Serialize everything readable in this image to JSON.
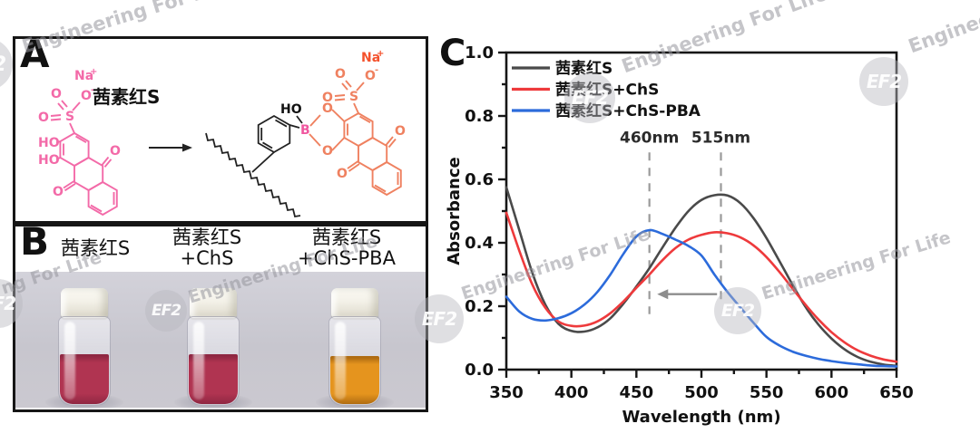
{
  "watermark": {
    "logo": "EF2",
    "text": "Engineering For Life",
    "text_short": "Engineer",
    "text_fragment": "ng For Life"
  },
  "panel_a": {
    "label": "A",
    "molecule_name": "茜素红S",
    "atoms": {
      "na": "Na",
      "plus": "+",
      "minus": "-",
      "s": "S",
      "o": "O",
      "ho": "HO",
      "b": "B"
    },
    "colors": {
      "alizarin_pink": "#f36aa8",
      "alizarin_orange": "#ef8160",
      "boron_pink": "#f0579f",
      "sodium_orange": "#f4512c"
    }
  },
  "panel_b": {
    "label": "B",
    "samples": [
      {
        "lines": [
          "茜素红S"
        ],
        "liquid": "#b03451",
        "liquid_dark": "#8f2742"
      },
      {
        "lines": [
          "茜素红S",
          "+ChS"
        ],
        "liquid": "#b03451",
        "liquid_dark": "#8f2742"
      },
      {
        "lines": [
          "茜素红S",
          "+ChS-PBA"
        ],
        "liquid": "#e5941e",
        "liquid_dark": "#b06c12"
      }
    ]
  },
  "panel_c": {
    "label": "C"
  },
  "chart_data": {
    "type": "line",
    "title": "",
    "xlabel": "Wavelength (nm)",
    "ylabel": "Absorbance",
    "xlim": [
      350,
      650
    ],
    "ylim": [
      0.0,
      1.0
    ],
    "x_ticks": [
      350,
      400,
      450,
      500,
      550,
      600,
      650
    ],
    "y_ticks": [
      0.0,
      0.2,
      0.4,
      0.6,
      0.8,
      1.0
    ],
    "grid": false,
    "legend_position": "top-left",
    "x_start": 350,
    "x_step": 10,
    "series": [
      {
        "name": "茜素红S",
        "color": "#4a4a4a",
        "values": [
          0.575,
          0.44,
          0.305,
          0.205,
          0.145,
          0.122,
          0.12,
          0.133,
          0.162,
          0.208,
          0.262,
          0.32,
          0.385,
          0.447,
          0.5,
          0.535,
          0.55,
          0.549,
          0.525,
          0.478,
          0.415,
          0.342,
          0.268,
          0.198,
          0.142,
          0.098,
          0.064,
          0.04,
          0.025,
          0.016,
          0.012
        ]
      },
      {
        "name": "茜素红S+ChS",
        "color": "#ee3a3c",
        "values": [
          0.495,
          0.375,
          0.268,
          0.195,
          0.152,
          0.138,
          0.139,
          0.152,
          0.178,
          0.215,
          0.258,
          0.3,
          0.345,
          0.383,
          0.41,
          0.425,
          0.433,
          0.43,
          0.417,
          0.392,
          0.355,
          0.308,
          0.256,
          0.205,
          0.158,
          0.118,
          0.086,
          0.061,
          0.044,
          0.032,
          0.025
        ]
      },
      {
        "name": "茜素红S+ChS-PBA",
        "color": "#2c6bdb",
        "values": [
          0.23,
          0.183,
          0.16,
          0.155,
          0.162,
          0.178,
          0.205,
          0.245,
          0.3,
          0.365,
          0.42,
          0.44,
          0.428,
          0.41,
          0.39,
          0.36,
          0.3,
          0.245,
          0.196,
          0.148,
          0.103,
          0.076,
          0.057,
          0.044,
          0.034,
          0.027,
          0.021,
          0.017,
          0.013,
          0.011,
          0.01
        ]
      }
    ],
    "annotations": {
      "vlines": [
        {
          "x": 460,
          "label": "460nm",
          "y_top": 0.685,
          "y_bottom": 0.175
        },
        {
          "x": 515,
          "label": "515nm",
          "y_top": 0.685,
          "y_bottom": 0.215
        }
      ],
      "arrow": {
        "from_x": 512,
        "to_x": 466,
        "y": 0.238,
        "direction": "left",
        "color": "#8d8d8d"
      }
    }
  }
}
